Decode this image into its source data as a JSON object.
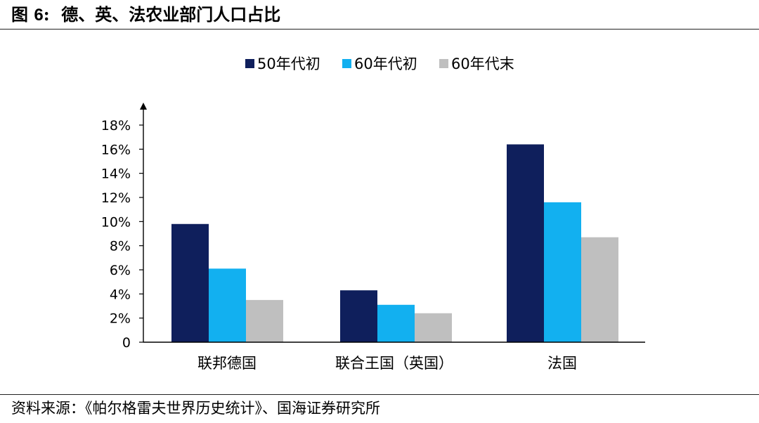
{
  "figure": {
    "title_prefix": "图 ",
    "title_number": "6",
    "title_sep": ":",
    "title_text": "德、英、法农业部门人口占比",
    "source": "资料来源：《帕尔格雷夫世界历史统计》、国海证券研究所"
  },
  "chart_data": {
    "type": "bar",
    "categories": [
      "联邦德国",
      "联合王国（英国）",
      "法国"
    ],
    "series": [
      {
        "name": "50年代初",
        "color": "#0f1f5c",
        "values": [
          9.8,
          4.3,
          16.4
        ]
      },
      {
        "name": "60年代初",
        "color": "#12b0f0",
        "values": [
          6.1,
          3.1,
          11.6
        ]
      },
      {
        "name": "60年代末",
        "color": "#bfbfbf",
        "values": [
          3.5,
          2.4,
          8.7
        ]
      }
    ],
    "ylim": [
      0,
      18
    ],
    "yticks": [
      0,
      2,
      4,
      6,
      8,
      10,
      12,
      14,
      16,
      18
    ],
    "ytick_labels": [
      "0",
      "2%",
      "4%",
      "6%",
      "8%",
      "10%",
      "12%",
      "14%",
      "16%",
      "18%"
    ],
    "value_unit": "%",
    "legend_position": "top-center",
    "grid": false
  }
}
